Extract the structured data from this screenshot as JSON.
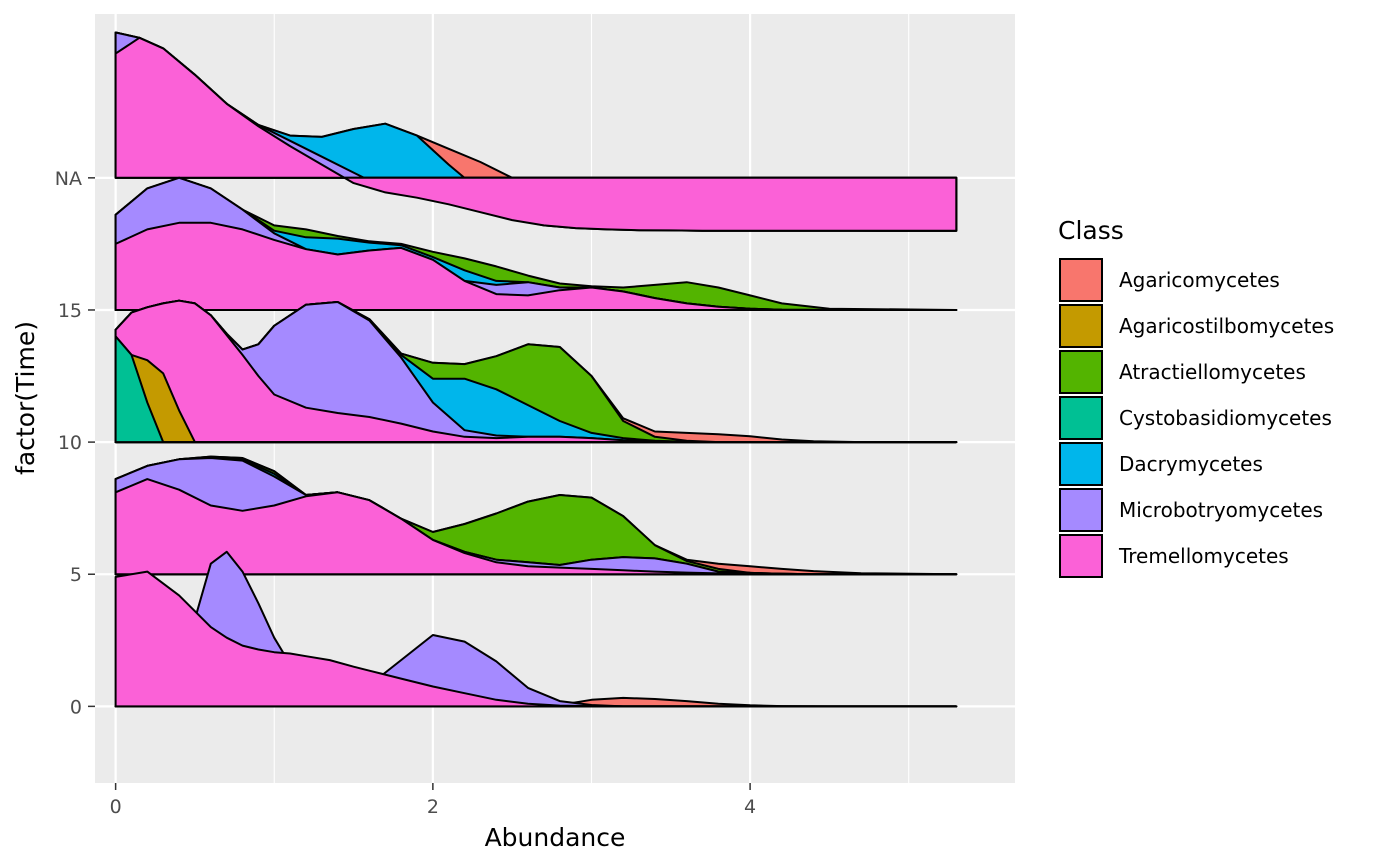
{
  "chart_data": {
    "type": "area",
    "subtype": "ridgeline-stacked-density",
    "xlabel": "Abundance",
    "ylabel": "factor(Time)",
    "xlim": [
      -0.13,
      5.67
    ],
    "x_ticks": [
      0,
      2,
      4
    ],
    "x_tick_labels": [
      "0",
      "2",
      "4"
    ],
    "y_tick_labels": [
      "0",
      "5",
      "10",
      "15",
      "NA"
    ],
    "background": "#ebebeb",
    "grid": true,
    "legend": {
      "title": "Class",
      "position": "right",
      "entries": [
        {
          "name": "Agaricomycetes",
          "color": "#F8766D"
        },
        {
          "name": "Agaricostilbomycetes",
          "color": "#C49A00"
        },
        {
          "name": "Atractiellomycetes",
          "color": "#53B400"
        },
        {
          "name": "Cystobasidiomycetes",
          "color": "#00C094"
        },
        {
          "name": "Dacrymycetes",
          "color": "#00B6EB"
        },
        {
          "name": "Microbotryomycetes",
          "color": "#A58AFF"
        },
        {
          "name": "Tremellomycetes",
          "color": "#FB61D7"
        }
      ]
    },
    "ridges": [
      {
        "group": "0",
        "x": [
          0,
          0.2,
          0.4,
          0.5,
          0.6,
          0.7,
          0.8,
          0.9,
          1.0,
          1.1,
          1.2,
          1.35,
          1.5,
          1.6,
          1.8,
          2.0,
          2.2,
          2.4,
          2.6,
          2.8,
          3.0,
          3.2,
          3.4,
          3.6,
          3.8,
          4.0,
          4.2,
          4.5,
          5.3
        ],
        "series": [
          {
            "name": "Tremellomycetes",
            "values": [
              4.9,
              5.1,
              4.2,
              3.6,
              3.0,
              2.6,
              2.3,
              2.15,
              2.05,
              2.0,
              1.9,
              1.75,
              1.5,
              1.35,
              1.05,
              0.75,
              0.5,
              0.25,
              0.1,
              0.03,
              0.01,
              0,
              0,
              0,
              0,
              0,
              0,
              0,
              0
            ]
          },
          {
            "name": "Microbotryomycetes",
            "values": [
              0,
              0,
              0.6,
              3.3,
              5.4,
              5.85,
              5.1,
              3.9,
              2.6,
              1.6,
              1.0,
              0.5,
              0.55,
              0.8,
              1.75,
              2.7,
              2.45,
              1.7,
              0.7,
              0.2,
              0.05,
              0,
              0,
              0,
              0,
              0,
              0,
              0,
              0
            ]
          },
          {
            "name": "Dacrymycetes",
            "values": [
              0,
              0,
              0,
              0,
              0,
              0,
              0,
              0,
              0,
              0,
              0,
              0,
              0.1,
              0.2,
              0.1,
              0,
              0.1,
              0.2,
              0.25,
              0.1,
              0.02,
              0,
              0,
              0,
              0,
              0,
              0,
              0,
              0
            ]
          },
          {
            "name": "Atractiellomycetes",
            "values": [
              0,
              0,
              0,
              0,
              0,
              0,
              0.4,
              0.65,
              0.7,
              0.4,
              0.1,
              0,
              0,
              0,
              0,
              0,
              0,
              0,
              0,
              0,
              0,
              0,
              0,
              0,
              0,
              0,
              0,
              0,
              0
            ]
          },
          {
            "name": "Agaricomycetes",
            "values": [
              0,
              0,
              0,
              0,
              0,
              0,
              0,
              0,
              0,
              0,
              0,
              0.1,
              0.05,
              0,
              0,
              0,
              0,
              0,
              0,
              0.05,
              0.25,
              0.32,
              0.28,
              0.2,
              0.1,
              0.04,
              0.01,
              0,
              0
            ]
          }
        ]
      },
      {
        "group": "5",
        "x": [
          0,
          0.2,
          0.4,
          0.6,
          0.8,
          1.0,
          1.2,
          1.4,
          1.6,
          1.8,
          2.0,
          2.2,
          2.4,
          2.6,
          2.8,
          3.0,
          3.2,
          3.4,
          3.6,
          3.8,
          4.0,
          4.2,
          4.4,
          4.7,
          5.3
        ],
        "series": [
          {
            "name": "Tremellomycetes",
            "values": [
              8.1,
              8.6,
              8.2,
              7.6,
              7.4,
              7.6,
              7.95,
              8.1,
              7.8,
              7.1,
              6.3,
              5.8,
              5.45,
              5.3,
              5.25,
              5.2,
              5.15,
              5.1,
              5.06,
              5.03,
              5.01,
              5.0,
              5.0,
              5.0,
              5.0
            ]
          },
          {
            "name": "Microbotryomycetes",
            "values": [
              8.6,
              9.1,
              9.35,
              9.4,
              9.3,
              8.7,
              8.0,
              8.1,
              7.8,
              7.1,
              6.3,
              5.85,
              5.55,
              5.45,
              5.35,
              5.55,
              5.65,
              5.6,
              5.4,
              5.1,
              5.05,
              5.02,
              5.0,
              5.0,
              5.0
            ]
          },
          {
            "name": "Dacrymycetes",
            "values": [
              8.6,
              9.1,
              9.35,
              9.42,
              9.35,
              8.8,
              8.0,
              8.1,
              7.8,
              7.1,
              6.3,
              5.85,
              5.55,
              5.45,
              5.35,
              5.55,
              5.65,
              5.6,
              5.4,
              5.1,
              5.05,
              5.02,
              5.0,
              5.0,
              5.0
            ]
          },
          {
            "name": "Atractiellomycetes",
            "values": [
              8.6,
              9.1,
              9.35,
              9.45,
              9.4,
              8.9,
              8.0,
              8.1,
              7.8,
              7.1,
              6.6,
              6.9,
              7.3,
              7.75,
              8.0,
              7.9,
              7.2,
              6.1,
              5.5,
              5.2,
              5.05,
              5.02,
              5.0,
              5.0,
              5.0
            ]
          },
          {
            "name": "Agaricomycetes",
            "values": [
              8.6,
              9.1,
              9.35,
              9.45,
              9.4,
              8.9,
              8.0,
              8.1,
              7.8,
              7.1,
              6.6,
              6.9,
              7.3,
              7.75,
              8.0,
              7.9,
              7.2,
              6.1,
              5.55,
              5.4,
              5.3,
              5.2,
              5.12,
              5.04,
              5.0
            ]
          }
        ]
      },
      {
        "group": "10",
        "x": [
          0,
          0.1,
          0.2,
          0.3,
          0.4,
          0.5,
          0.6,
          0.7,
          0.8,
          0.9,
          1.0,
          1.2,
          1.4,
          1.6,
          1.8,
          2.0,
          2.2,
          2.4,
          2.6,
          2.8,
          3.0,
          3.2,
          3.4,
          3.6,
          3.8,
          4.0,
          4.2,
          4.4,
          4.7,
          5.3
        ],
        "series": [
          {
            "name": "Cystobasidiomycetes",
            "values": [
              14.0,
              13.3,
              11.5,
              10.0,
              10.0,
              10.0,
              10.0,
              10.0,
              10.0,
              10.0,
              10.0,
              10.0,
              10.0,
              10.0,
              10.0,
              10.0,
              10.0,
              10.0,
              10.0,
              10.0,
              10.0,
              10.0,
              10.0,
              10.0,
              10.0,
              10.0,
              10.0,
              10.0,
              10.0,
              10.0
            ]
          },
          {
            "name": "Agaricostilbomycetes",
            "values": [
              14.0,
              13.3,
              13.1,
              12.6,
              11.2,
              10.0,
              10.0,
              10.0,
              10.0,
              10.0,
              10.0,
              10.0,
              10.0,
              10.0,
              10.0,
              10.0,
              10.0,
              10.0,
              10.0,
              10.0,
              10.0,
              10.0,
              10.0,
              10.0,
              10.0,
              10.0,
              10.0,
              10.0,
              10.0,
              10.0
            ]
          },
          {
            "name": "Tremellomycetes",
            "values": [
              14.25,
              14.9,
              15.1,
              15.25,
              15.35,
              15.25,
              14.8,
              14.05,
              13.3,
              12.5,
              11.8,
              11.3,
              11.1,
              10.95,
              10.7,
              10.4,
              10.2,
              10.15,
              10.2,
              10.2,
              10.15,
              10.07,
              10.03,
              10.01,
              10.0,
              10.0,
              10.0,
              10.0,
              10.0,
              10.0
            ]
          },
          {
            "name": "Microbotryomycetes",
            "values": [
              14.25,
              14.9,
              15.1,
              15.25,
              15.35,
              15.25,
              14.8,
              14.1,
              13.5,
              13.7,
              14.4,
              15.2,
              15.3,
              14.6,
              13.2,
              11.5,
              10.45,
              10.25,
              10.2,
              10.2,
              10.15,
              10.07,
              10.03,
              10.01,
              10.0,
              10.0,
              10.0,
              10.0,
              10.0,
              10.0
            ]
          },
          {
            "name": "Dacrymycetes",
            "values": [
              14.25,
              14.9,
              15.1,
              15.25,
              15.35,
              15.25,
              14.8,
              14.1,
              13.5,
              13.7,
              14.4,
              15.2,
              15.3,
              14.65,
              13.3,
              12.4,
              12.4,
              12.0,
              11.4,
              10.8,
              10.35,
              10.15,
              10.05,
              10.01,
              10.0,
              10.0,
              10.0,
              10.0,
              10.0,
              10.0
            ]
          },
          {
            "name": "Atractiellomycetes",
            "values": [
              14.25,
              14.9,
              15.1,
              15.25,
              15.35,
              15.25,
              14.8,
              14.1,
              13.5,
              13.7,
              14.4,
              15.2,
              15.3,
              14.65,
              13.35,
              13.0,
              12.95,
              13.25,
              13.7,
              13.6,
              12.5,
              10.8,
              10.2,
              10.05,
              10.0,
              10.0,
              10.0,
              10.0,
              10.0,
              10.0
            ]
          },
          {
            "name": "Agaricomycetes",
            "values": [
              14.25,
              14.9,
              15.1,
              15.25,
              15.35,
              15.25,
              14.8,
              14.1,
              13.5,
              13.7,
              14.4,
              15.2,
              15.3,
              14.65,
              13.35,
              13.0,
              12.95,
              13.25,
              13.7,
              13.6,
              12.5,
              10.9,
              10.4,
              10.35,
              10.3,
              10.22,
              10.1,
              10.03,
              10.0,
              10.0
            ]
          }
        ]
      },
      {
        "group": "15",
        "x": [
          0,
          0.2,
          0.4,
          0.6,
          0.8,
          1.0,
          1.2,
          1.4,
          1.6,
          1.8,
          2.0,
          2.2,
          2.4,
          2.6,
          2.8,
          3.0,
          3.2,
          3.4,
          3.6,
          3.8,
          4.0,
          4.2,
          4.5,
          5.3
        ],
        "series": [
          {
            "name": "Tremellomycetes",
            "values": [
              17.5,
              18.05,
              18.3,
              18.3,
              18.05,
              17.65,
              17.3,
              17.1,
              17.25,
              17.35,
              16.9,
              16.1,
              15.6,
              15.55,
              15.75,
              15.85,
              15.7,
              15.45,
              15.25,
              15.12,
              15.05,
              15.01,
              15.0,
              15.0
            ]
          },
          {
            "name": "Microbotryomycetes",
            "values": [
              18.6,
              19.6,
              20.0,
              19.6,
              18.8,
              17.9,
              17.3,
              17.1,
              17.25,
              17.35,
              16.9,
              16.1,
              15.95,
              16.05,
              15.85,
              15.85,
              15.7,
              15.45,
              15.25,
              15.12,
              15.05,
              15.01,
              15.0,
              15.0
            ]
          },
          {
            "name": "Dacrymycetes",
            "values": [
              18.6,
              19.6,
              20.0,
              19.6,
              18.8,
              18.0,
              17.75,
              17.7,
              17.55,
              17.45,
              17.0,
              16.5,
              16.1,
              16.05,
              15.85,
              15.85,
              15.7,
              15.45,
              15.25,
              15.12,
              15.05,
              15.01,
              15.0,
              15.0
            ]
          },
          {
            "name": "Atractiellomycetes",
            "values": [
              18.6,
              19.6,
              20.0,
              19.6,
              18.8,
              18.2,
              18.05,
              17.8,
              17.6,
              17.5,
              17.2,
              16.95,
              16.65,
              16.3,
              16.0,
              15.9,
              15.85,
              15.95,
              16.05,
              15.85,
              15.55,
              15.25,
              15.05,
              15.0
            ]
          }
        ]
      },
      {
        "group": "NA",
        "x": [
          0,
          0.15,
          0.3,
          0.5,
          0.7,
          0.9,
          1.1,
          1.3,
          1.5,
          1.7,
          1.9,
          2.1,
          2.3,
          2.5,
          2.7,
          2.9,
          3.1,
          3.3,
          3.5,
          3.7,
          3.9,
          4.1,
          4.3,
          4.5,
          4.8,
          5.3
        ],
        "series": [
          {
            "name": "Tremellomycetes",
            "values": [
              24.7,
              25.3,
              24.9,
              23.9,
              22.8,
              21.95,
              21.2,
              20.5,
              19.8,
              19.45,
              19.25,
              19.0,
              18.7,
              18.4,
              18.2,
              18.1,
              18.05,
              18.02,
              18.01,
              18.0,
              18.0,
              18.0,
              18.0,
              18.0,
              18.0,
              18.0
            ]
          },
          {
            "name": "Microbotryomycetes",
            "values": [
              25.5,
              25.3,
              24.9,
              23.9,
              22.8,
              22.0,
              21.4,
              20.8,
              20.2,
              19.6,
              19.3,
              19.05,
              18.75,
              18.45,
              18.2,
              18.1,
              18.05,
              18.02,
              18.01,
              18.0,
              18.0,
              18.0,
              18.0,
              18.0,
              18.0,
              18.0
            ]
          },
          {
            "name": "Dacrymycetes",
            "values": [
              25.5,
              25.3,
              24.9,
              23.9,
              22.8,
              22.0,
              21.6,
              21.55,
              21.85,
              22.05,
              21.6,
              20.5,
              19.5,
              18.8,
              18.4,
              18.2,
              18.1,
              18.05,
              18.02,
              18.0,
              18.0,
              18.0,
              18.0,
              18.0,
              18.0,
              18.0
            ]
          },
          {
            "name": "Agaricomycetes",
            "values": [
              25.5,
              25.3,
              24.9,
              23.9,
              22.8,
              22.0,
              21.6,
              21.55,
              21.85,
              22.05,
              21.6,
              21.1,
              20.6,
              20.0,
              19.3,
              18.8,
              18.6,
              18.55,
              18.5,
              18.45,
              18.35,
              18.2,
              18.08,
              18.02,
              18.0,
              18.0
            ]
          }
        ]
      }
    ]
  }
}
